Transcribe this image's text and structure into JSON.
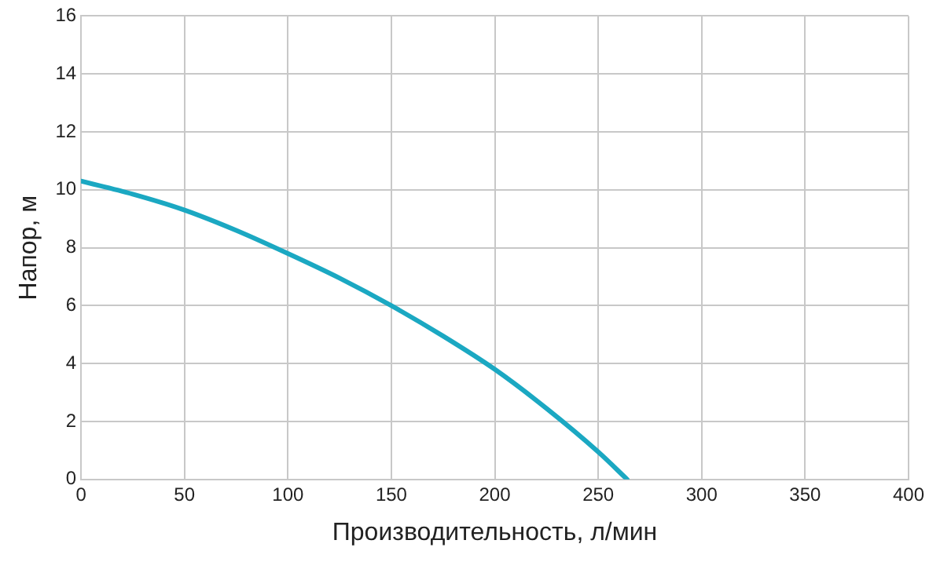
{
  "chart_data": {
    "type": "line",
    "xlabel": "Производительность, л/мин",
    "ylabel": "Напор, м",
    "x": [
      0,
      25,
      50,
      75,
      100,
      125,
      150,
      175,
      200,
      225,
      250,
      264
    ],
    "series": [
      {
        "color": "#1ba8c2",
        "values": [
          10.3,
          9.85,
          9.3,
          8.6,
          7.8,
          6.95,
          6.0,
          4.95,
          3.8,
          2.45,
          0.95,
          0
        ]
      }
    ],
    "xlim": [
      0,
      400
    ],
    "xticks": [
      0,
      50,
      100,
      150,
      200,
      250,
      300,
      350,
      400
    ],
    "ylim": [
      0,
      16
    ],
    "yticks": [
      0,
      2,
      4,
      6,
      8,
      10,
      12,
      14,
      16
    ],
    "grid": true,
    "legend": false,
    "marker": "none",
    "line_style": "solid"
  }
}
